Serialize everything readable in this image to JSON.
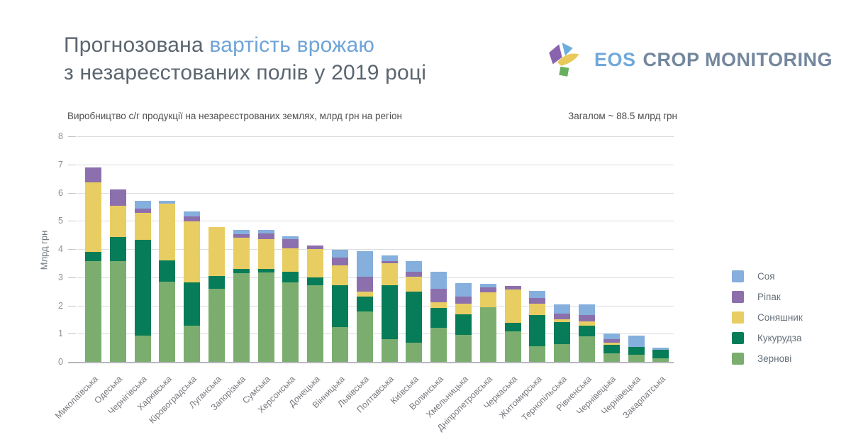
{
  "header": {
    "title_line1_normal": "Прогнозована",
    "title_line1_accent": "вартість врожаю",
    "title_line2": "з незареєстованих полів у 2019 році",
    "logo": {
      "text_primary": "EOS",
      "text_secondary": "CROP MONITORING"
    }
  },
  "chart": {
    "subtitle": "Виробництво с/г продукції на незареєстрованих землях, млрд грн на регіон",
    "total_label": "Загалом ~ 88.5 млрд грн"
  },
  "chart_data": {
    "type": "bar",
    "stacked": true,
    "title": "Прогнозована вартість врожаю з незареєстованих полів у 2019 році",
    "xlabel": "",
    "ylabel": "Млрд грн",
    "ylim": [
      0,
      8
    ],
    "yticks": [
      0,
      1,
      2,
      3,
      4,
      5,
      6,
      7,
      8
    ],
    "grid": true,
    "legend_position": "right",
    "legend_order": [
      "Соя",
      "Ріпак",
      "Соняшник",
      "Кукурудза",
      "Зернові"
    ],
    "total": "≈ 88.5 млрд грн",
    "categories": [
      "Миколаївська",
      "Одеська",
      "Чернігівська",
      "Харківська",
      "Кіровоградська",
      "Луганська",
      "Запорізька",
      "Сумська",
      "Херсонська",
      "Донецька",
      "Вінницька",
      "Львівська",
      "Полтавська",
      "Київська",
      "Волинська",
      "Хмельницька",
      "Дніпропетровська",
      "Черкаська",
      "Житомирська",
      "Тернопільська",
      "Рівненська",
      "Чернівецька",
      "Чернівецька",
      "Закарпатська"
    ],
    "series": [
      {
        "name": "Зернові",
        "color": "#7bae6e",
        "values": [
          3.6,
          3.6,
          0.95,
          2.87,
          1.3,
          2.62,
          3.18,
          3.2,
          2.85,
          2.74,
          1.26,
          1.8,
          0.82,
          0.71,
          1.23,
          0.97,
          1.97,
          1.1,
          0.57,
          0.65,
          0.93,
          0.33,
          0.28,
          0.15
        ]
      },
      {
        "name": "Кукурудза",
        "color": "#077c59",
        "values": [
          0.33,
          0.85,
          3.4,
          0.76,
          1.55,
          0.46,
          0.13,
          0.12,
          0.38,
          0.27,
          1.48,
          0.54,
          1.92,
          1.81,
          0.71,
          0.75,
          0.0,
          0.31,
          1.12,
          0.78,
          0.39,
          0.29,
          0.27,
          0.3
        ]
      },
      {
        "name": "Соняшник",
        "color": "#e8ce62",
        "values": [
          2.45,
          1.1,
          0.95,
          2.0,
          2.15,
          1.72,
          1.11,
          1.06,
          0.81,
          1.02,
          0.71,
          0.17,
          0.78,
          0.53,
          0.21,
          0.37,
          0.52,
          1.17,
          0.4,
          0.1,
          0.15,
          0.09,
          0.0,
          0.0
        ]
      },
      {
        "name": "Ріпак",
        "color": "#8c70ad",
        "values": [
          0.55,
          0.6,
          0.16,
          0.0,
          0.18,
          0.0,
          0.14,
          0.19,
          0.33,
          0.11,
          0.28,
          0.53,
          0.09,
          0.17,
          0.46,
          0.25,
          0.17,
          0.14,
          0.19,
          0.2,
          0.21,
          0.12,
          0.0,
          0.0
        ]
      },
      {
        "name": "Соя",
        "color": "#85afdc",
        "values": [
          0.0,
          0.0,
          0.28,
          0.1,
          0.17,
          0.0,
          0.14,
          0.14,
          0.11,
          0.0,
          0.27,
          0.9,
          0.19,
          0.37,
          0.61,
          0.48,
          0.14,
          0.0,
          0.27,
          0.33,
          0.38,
          0.21,
          0.4,
          0.08
        ]
      }
    ]
  }
}
